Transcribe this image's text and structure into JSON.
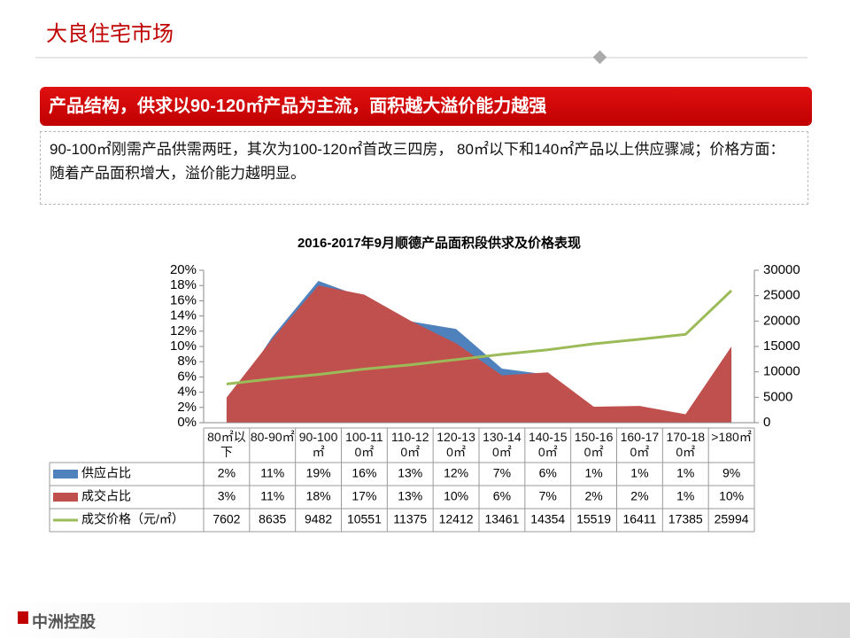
{
  "header": {
    "title": "大良住宅市场"
  },
  "banner": "产品结构，供求以90-120㎡产品为主流，面积越大溢价能力越强",
  "description": "90-100㎡刚需产品供需两旺，其次为100-120㎡首改三四房， 80㎡以下和140㎡产品以上供应骤减；价格方面：随着产品面积增大，溢价能力越明显。",
  "footer": {
    "logo": "中洲控股"
  },
  "chart_data": {
    "type": "combo",
    "title": "2016-2017年9月顺德产品面积段供求及价格表现",
    "categories": [
      "80㎡以下",
      "80-90㎡",
      "90-100㎡",
      "100-110㎡",
      "110-120㎡",
      "120-130㎡",
      "130-140㎡",
      "140-150㎡",
      "150-160㎡",
      "160-170㎡",
      "170-180㎡",
      ">180㎡"
    ],
    "series": [
      {
        "name": "供应占比",
        "color": "#4f81bd",
        "kind": "area",
        "values": [
          2.2,
          11.3,
          18.6,
          16.4,
          13.3,
          12.3,
          7.1,
          6.3,
          1.4,
          1.4,
          1.0,
          9.1
        ],
        "value_labels": [
          "2%",
          "11%",
          "19%",
          "16%",
          "13%",
          "12%",
          "7%",
          "6%",
          "1%",
          "1%",
          "1%",
          "9%"
        ]
      },
      {
        "name": "成交占比",
        "color": "#c0504d",
        "kind": "area",
        "values": [
          3.3,
          11.0,
          18.0,
          16.8,
          13.4,
          10.4,
          6.2,
          6.6,
          2.1,
          2.2,
          1.1,
          10.0
        ],
        "value_labels": [
          "3%",
          "11%",
          "18%",
          "17%",
          "13%",
          "10%",
          "6%",
          "7%",
          "2%",
          "2%",
          "1%",
          "10%"
        ]
      },
      {
        "name": "成交价格（元/㎡）",
        "color": "#9bbb59",
        "kind": "line",
        "axis": "y2",
        "values": [
          7602,
          8635,
          9482,
          10551,
          11375,
          12412,
          13461,
          14354,
          15519,
          16411,
          17385,
          25994
        ]
      }
    ],
    "ylim": [
      0,
      20
    ],
    "yticks": [
      {
        "value": 0,
        "label": "0%"
      },
      {
        "value": 2,
        "label": "2%"
      },
      {
        "value": 4,
        "label": "4%"
      },
      {
        "value": 6,
        "label": "6%"
      },
      {
        "value": 8,
        "label": "8%"
      },
      {
        "value": 10,
        "label": "10%"
      },
      {
        "value": 12,
        "label": "12%"
      },
      {
        "value": 14,
        "label": "14%"
      },
      {
        "value": 16,
        "label": "16%"
      },
      {
        "value": 18,
        "label": "18%"
      },
      {
        "value": 20,
        "label": "20%"
      }
    ],
    "y2lim": [
      0,
      30000
    ],
    "y2ticks": [
      0,
      5000,
      10000,
      15000,
      20000,
      25000,
      30000
    ]
  }
}
